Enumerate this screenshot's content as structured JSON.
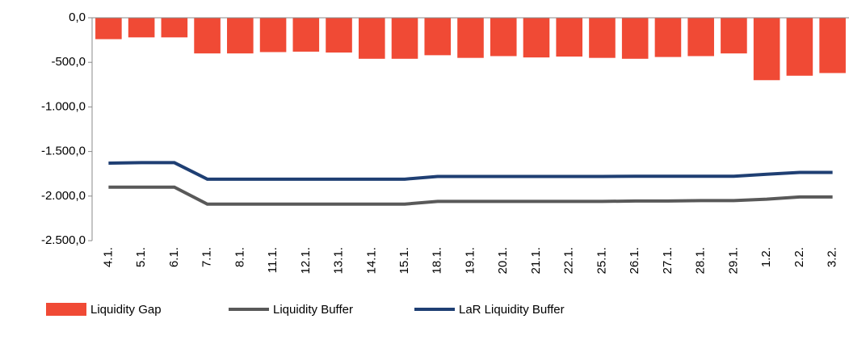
{
  "chart_data": {
    "type": "bar",
    "categories": [
      "4.1.",
      "5.1.",
      "6.1.",
      "7.1.",
      "8.1.",
      "11.1.",
      "12.1.",
      "13.1.",
      "14.1.",
      "15.1.",
      "18.1.",
      "19.1.",
      "20.1.",
      "21.1.",
      "22.1.",
      "25.1.",
      "26.1.",
      "27.1.",
      "28.1.",
      "29.1.",
      "1.2.",
      "2.2.",
      "3.2."
    ],
    "series": [
      {
        "name": "Liquidity Gap",
        "type": "bar",
        "color": "#f04a35",
        "values": [
          -240,
          -220,
          -220,
          -400,
          -400,
          -385,
          -380,
          -390,
          -460,
          -460,
          -420,
          -450,
          -430,
          -445,
          -435,
          -450,
          -460,
          -440,
          -430,
          -400,
          -700,
          -650,
          -620
        ]
      },
      {
        "name": "Liquidity Buffer",
        "type": "line",
        "color": "#595959",
        "values": [
          -1900,
          -1900,
          -1900,
          -2090,
          -2090,
          -2090,
          -2090,
          -2090,
          -2090,
          -2090,
          -2060,
          -2060,
          -2060,
          -2060,
          -2060,
          -2060,
          -2055,
          -2055,
          -2050,
          -2050,
          -2035,
          -2010,
          -2010
        ]
      },
      {
        "name": "LaR Liquidity Buffer",
        "type": "line",
        "color": "#1f3f73",
        "values": [
          -1630,
          -1625,
          -1625,
          -1810,
          -1810,
          -1810,
          -1810,
          -1810,
          -1810,
          -1810,
          -1780,
          -1780,
          -1780,
          -1780,
          -1780,
          -1780,
          -1778,
          -1778,
          -1778,
          -1778,
          -1755,
          -1735,
          -1735
        ]
      }
    ],
    "ylim": [
      -2500,
      0
    ],
    "yticks": [
      {
        "value": 0,
        "label": "0,0"
      },
      {
        "value": -500,
        "label": "-500,0"
      },
      {
        "value": -1000,
        "label": "-1.000,0"
      },
      {
        "value": -1500,
        "label": "-1.500,0"
      },
      {
        "value": -2000,
        "label": "-2.000,0"
      },
      {
        "value": -2500,
        "label": "-2.500,0"
      }
    ],
    "legend": "bottom"
  }
}
